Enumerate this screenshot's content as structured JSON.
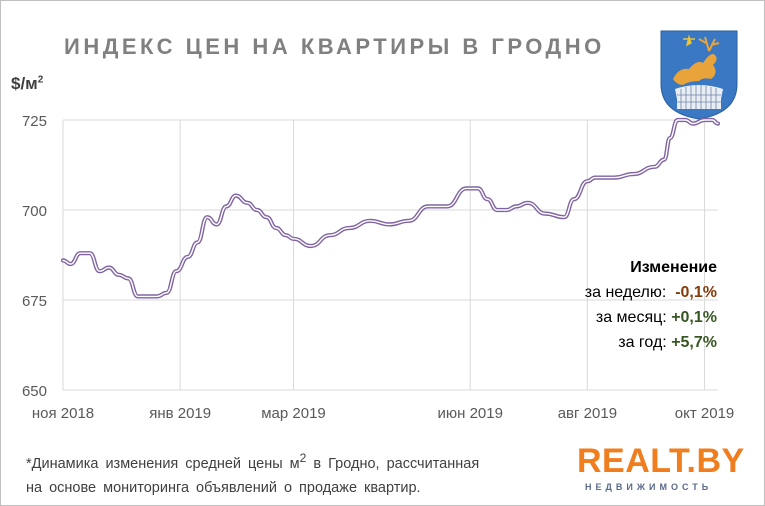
{
  "title": "ИНДЕКС ЦЕН НА КВАРТИРЫ В ГРОДНО",
  "unit_main": "$/м",
  "unit_sup": "2",
  "changes": {
    "header": "Изменение",
    "week_label": "за неделю:",
    "week_value": "-0,1%",
    "month_label": "за месяц:",
    "month_value": "+0,1%",
    "year_label": "за год:",
    "year_value": "+5,7%"
  },
  "footnote": {
    "line1_a": "*Динамика изменения средней цены м",
    "line1_sup": "2",
    "line1_b": " в Гродно, рассчитанная",
    "line2": "на основе мониторинга объявлений о продаже квартир."
  },
  "logo": {
    "main": "REALT.BY",
    "sub": "НЕДВИЖИМОСТЬ"
  },
  "colors": {
    "line_outer": "#8064a2",
    "line_inner": "#ffffff",
    "grid": "#d9d9d9",
    "accent_logo": "#f07d1e"
  },
  "chart_data": {
    "type": "line",
    "ylim": [
      650,
      725
    ],
    "yticks": [
      650,
      675,
      700,
      725
    ],
    "xtick_labels": [
      "ноя 2018",
      "янв 2019",
      "мар 2019",
      "июн 2019",
      "авг 2019",
      "окт 2019"
    ],
    "xtick_dates": [
      "2018-11-01",
      "2019-01-01",
      "2019-03-01",
      "2019-06-01",
      "2019-08-01",
      "2019-10-01"
    ],
    "grid": true,
    "series": [
      {
        "x": [
          "2018-11-01",
          "2018-11-05",
          "2018-11-10",
          "2018-11-15",
          "2018-11-20",
          "2018-11-25",
          "2018-11-30",
          "2018-12-05",
          "2018-12-10",
          "2018-12-15",
          "2018-12-20",
          "2018-12-25",
          "2018-12-30",
          "2019-01-05",
          "2019-01-10",
          "2019-01-15",
          "2019-01-20",
          "2019-01-25",
          "2019-01-30",
          "2019-02-05",
          "2019-02-10",
          "2019-02-15",
          "2019-02-20",
          "2019-02-25",
          "2019-03-01",
          "2019-03-10",
          "2019-03-20",
          "2019-03-30",
          "2019-04-10",
          "2019-04-20",
          "2019-04-30",
          "2019-05-10",
          "2019-05-20",
          "2019-05-30",
          "2019-06-01",
          "2019-06-05",
          "2019-06-10",
          "2019-06-15",
          "2019-06-20",
          "2019-06-25",
          "2019-07-01",
          "2019-07-10",
          "2019-07-20",
          "2019-07-25",
          "2019-08-01",
          "2019-08-05",
          "2019-08-15",
          "2019-08-25",
          "2019-09-05",
          "2019-09-10",
          "2019-09-13",
          "2019-09-17",
          "2019-09-21",
          "2019-09-25",
          "2019-10-01",
          "2019-10-05",
          "2019-10-08"
        ],
        "y": [
          686,
          685,
          688,
          688,
          683,
          684,
          682,
          681,
          676,
          676,
          676,
          677,
          683,
          687,
          691,
          698,
          696,
          701,
          704,
          702,
          700,
          698,
          695,
          693,
          692,
          690,
          693,
          695,
          697,
          696,
          697,
          701,
          701,
          706,
          706,
          706,
          703,
          700,
          700,
          701,
          702,
          699,
          698,
          703,
          708,
          709,
          709,
          710,
          712,
          714,
          720,
          725,
          725,
          724,
          725,
          725,
          724
        ]
      }
    ]
  }
}
